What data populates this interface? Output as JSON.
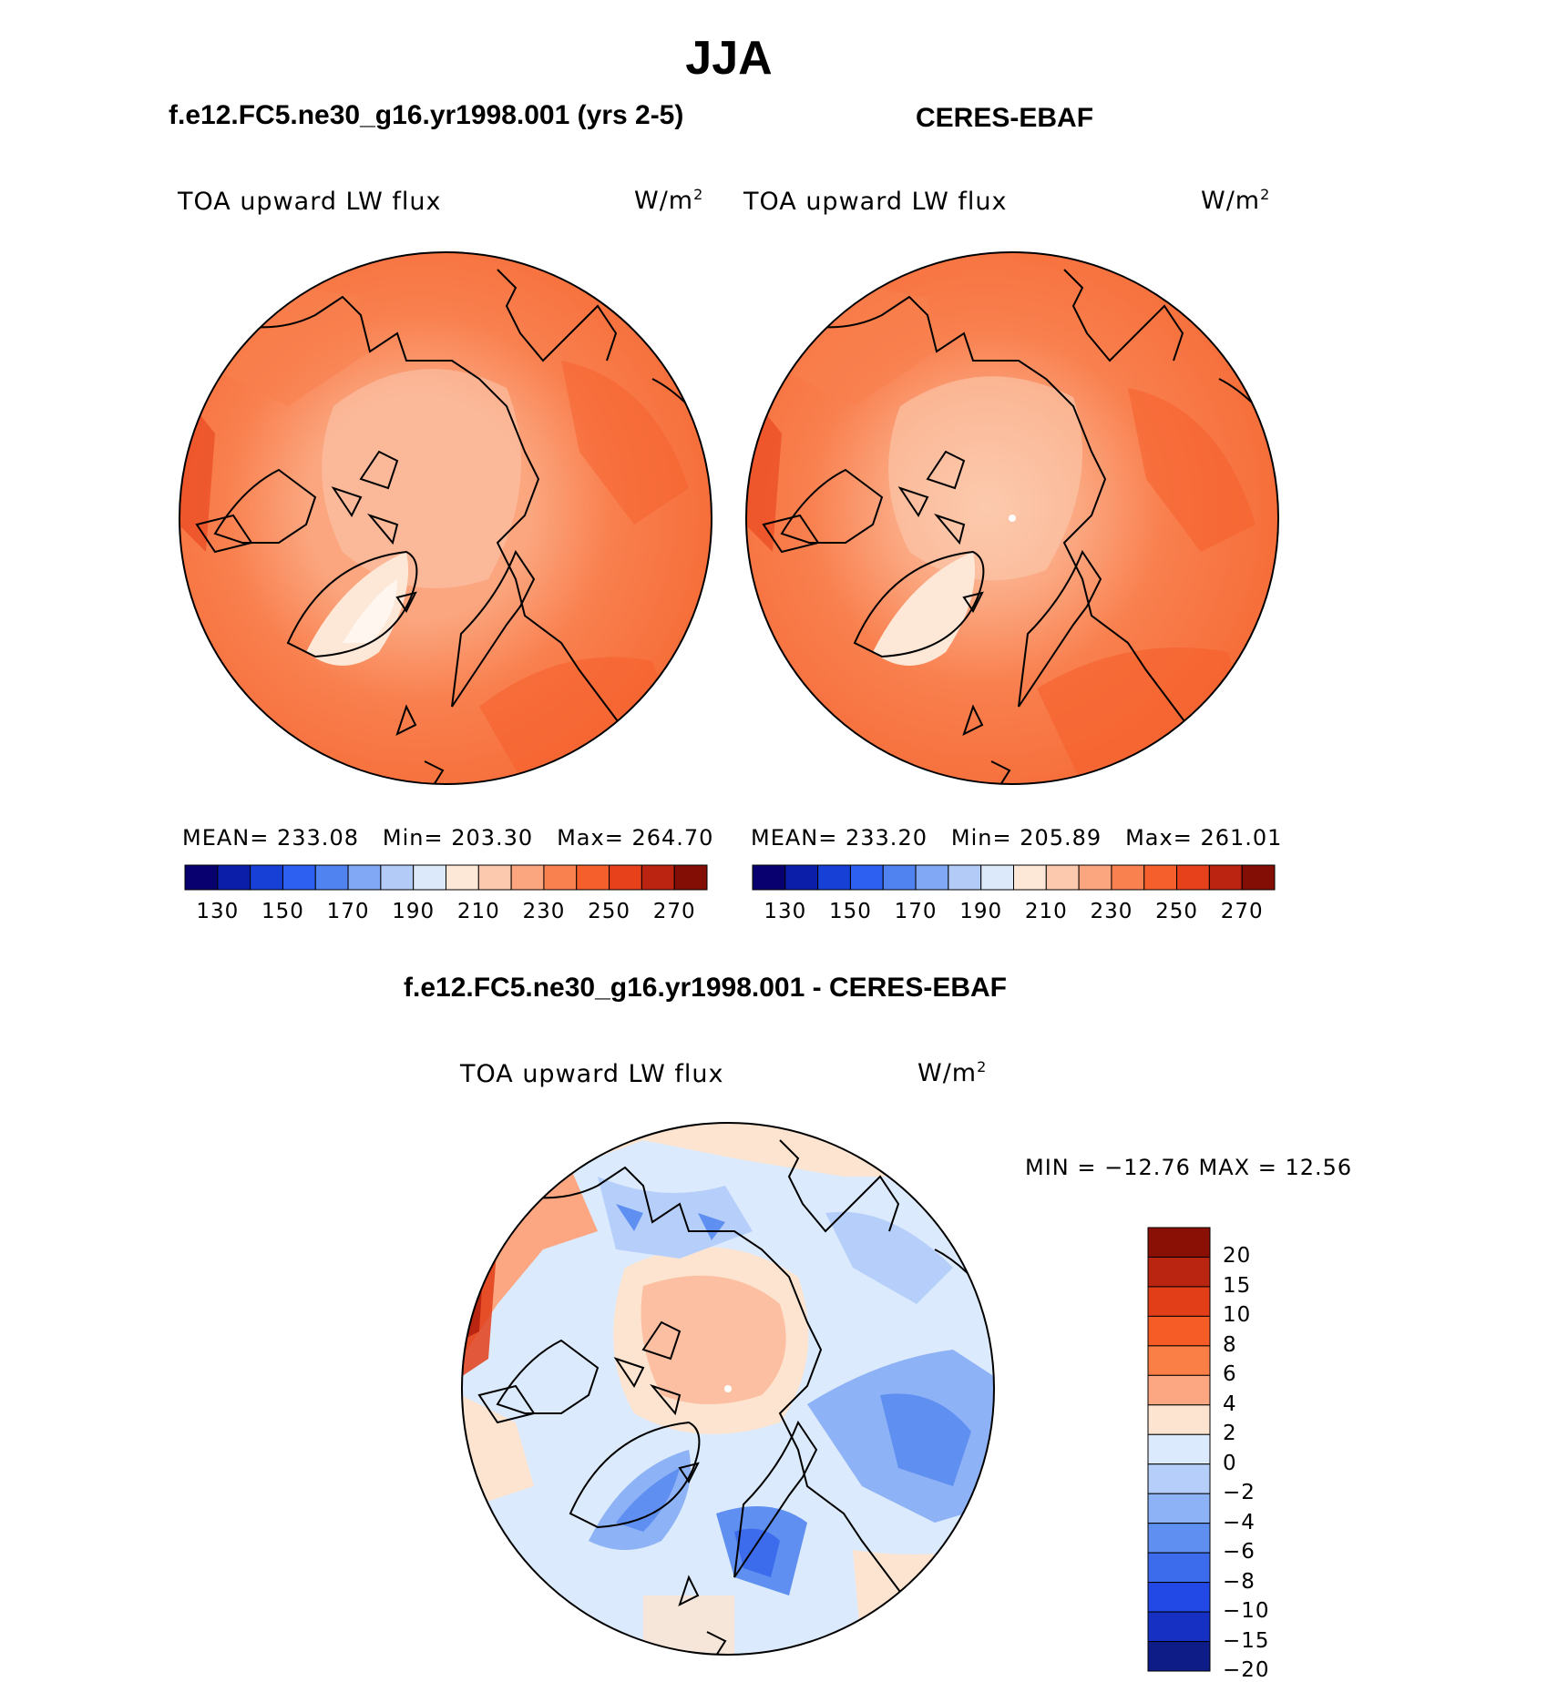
{
  "title": "JJA",
  "panels": [
    {
      "heading": "f.e12.FC5.ne30_g16.yr1998.001 (yrs 2-5)",
      "variable": "TOA upward LW flux",
      "units_base": "W/m",
      "units_exp": "2",
      "mean_label": "MEAN=",
      "mean_value": "233.08",
      "min_label": "Min=",
      "min_value": "203.30",
      "max_label": "Max=",
      "max_value": "264.70",
      "colorbar_ticks": [
        "130",
        "150",
        "170",
        "190",
        "210",
        "230",
        "250",
        "270"
      ]
    },
    {
      "heading": "CERES-EBAF",
      "variable": "TOA upward LW flux",
      "units_base": "W/m",
      "units_exp": "2",
      "mean_label": "MEAN=",
      "mean_value": "233.20",
      "min_label": "Min=",
      "min_value": "205.89",
      "max_label": "Max=",
      "max_value": "261.01",
      "colorbar_ticks": [
        "130",
        "150",
        "170",
        "190",
        "210",
        "230",
        "250",
        "270"
      ]
    }
  ],
  "diff_panel": {
    "heading": "f.e12.FC5.ne30_g16.yr1998.001 - CERES-EBAF",
    "variable": "TOA upward LW flux",
    "units_base": "W/m",
    "units_exp": "2",
    "minmax_label": "MIN = −12.76 MAX =  12.56",
    "colorbar_ticks": [
      "20",
      "15",
      "10",
      "8",
      "6",
      "4",
      "2",
      "0",
      "−2",
      "−4",
      "−6",
      "−8",
      "−10",
      "−15",
      "−20"
    ]
  },
  "colors": {
    "abs_scale": [
      "#08006e",
      "#0a1eaa",
      "#1640d6",
      "#2d5ff0",
      "#5082f0",
      "#80a8f4",
      "#b2cbf7",
      "#dbe9fb",
      "#fde8d8",
      "#fcc9ae",
      "#fba67f",
      "#f9804f",
      "#f55f2c",
      "#e7411b",
      "#bb2410",
      "#820e05"
    ],
    "diff_scale": [
      "#8a1005",
      "#b92510",
      "#e23e18",
      "#f65c26",
      "#fa7f46",
      "#fca682",
      "#fde4d0",
      "#dbeafc",
      "#b6cffa",
      "#8eb2f6",
      "#5f8ff0",
      "#3c6cec",
      "#2249e6",
      "#1530c2",
      "#0d1c86"
    ],
    "land_outline": "#000000"
  }
}
